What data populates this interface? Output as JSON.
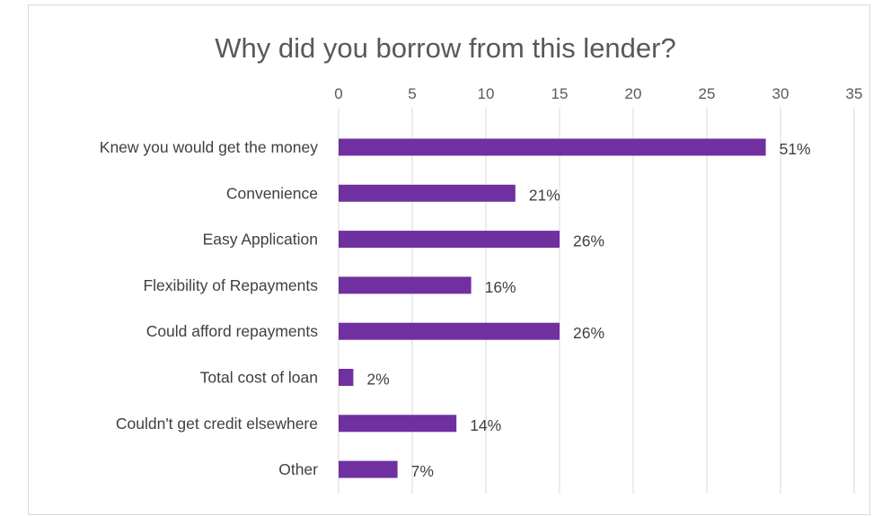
{
  "chart_data": {
    "type": "bar",
    "orientation": "horizontal",
    "title": "Why did you borrow from this lender?",
    "xlim": [
      0,
      35
    ],
    "x_ticks": [
      "0",
      "5",
      "10",
      "15",
      "20",
      "25",
      "30",
      "35"
    ],
    "x_axis_position": "top",
    "grid": true,
    "categories": [
      "Knew you would get the money",
      "Convenience",
      "Easy Application",
      "Flexibility of Repayments",
      "Could afford repayments",
      "Total cost of loan",
      "Couldn't get credit elsewhere",
      "Other"
    ],
    "values": [
      29,
      12,
      15,
      9,
      15,
      1,
      8,
      4
    ],
    "data_labels": [
      "51%",
      "21%",
      "26%",
      "16%",
      "26%",
      "2%",
      "14%",
      "7%"
    ],
    "bar_color": "#7030a0",
    "gridline_color": "#d9d9d9",
    "text_color": "#595959"
  }
}
